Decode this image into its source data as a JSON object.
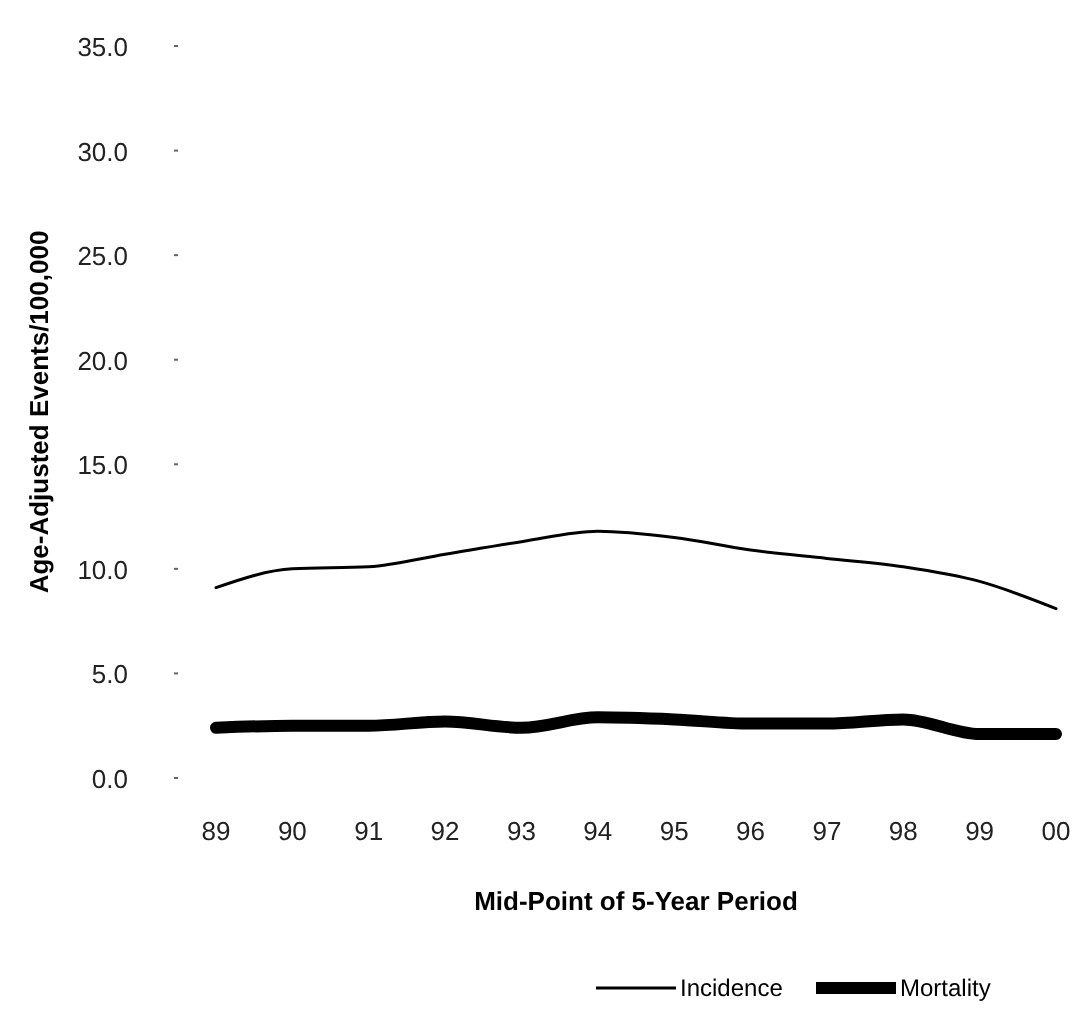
{
  "chart_data": {
    "type": "line",
    "xlabel": "Mid-Point of 5-Year Period",
    "ylabel": "Age-Adjusted Events/100,000",
    "categories": [
      "89",
      "90",
      "91",
      "92",
      "93",
      "94",
      "95",
      "96",
      "97",
      "98",
      "99",
      "00"
    ],
    "ylim": [
      0,
      35
    ],
    "yticks": [
      {
        "value": 0,
        "label": "0.0"
      },
      {
        "value": 5,
        "label": "5.0"
      },
      {
        "value": 10,
        "label": "10.0"
      },
      {
        "value": 15,
        "label": "15.0"
      },
      {
        "value": 20,
        "label": "20.0"
      },
      {
        "value": 25,
        "label": "25.0"
      },
      {
        "value": 30,
        "label": "30.0"
      },
      {
        "value": 35,
        "label": "35.0"
      }
    ],
    "grid": false,
    "legend": "bottom",
    "series": [
      {
        "name": "Incidence",
        "color": "#000000",
        "values": [
          9.1,
          10.0,
          10.1,
          10.7,
          11.3,
          11.8,
          11.5,
          10.9,
          10.5,
          10.1,
          9.4,
          8.1
        ]
      },
      {
        "name": "Mortality",
        "color": "#000000",
        "values": [
          2.4,
          2.5,
          2.5,
          2.7,
          2.4,
          2.9,
          2.8,
          2.6,
          2.6,
          2.8,
          2.1,
          2.1
        ]
      }
    ]
  }
}
